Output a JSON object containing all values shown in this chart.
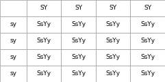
{
  "header_row": [
    "",
    "SY",
    "SY",
    "SY",
    "SY"
  ],
  "rows": [
    [
      "sy",
      "SsYy",
      "SsYy",
      "SsYy",
      "SsYy"
    ],
    [
      "sy",
      "SsYy",
      "SsYy",
      "SsYy",
      "SsYy"
    ],
    [
      "sy",
      "SsYy",
      "SsYy",
      "SsYy",
      "SsYy"
    ],
    [
      "sy",
      "SsYy",
      "SsYy",
      "SsYy",
      "SsYy"
    ]
  ],
  "fontsize": 6.5,
  "fontweight": "normal",
  "bg_color": "#ffffff",
  "grid_color": "#999999",
  "text_color": "#000000",
  "n_cols": 5,
  "n_rows": 5
}
